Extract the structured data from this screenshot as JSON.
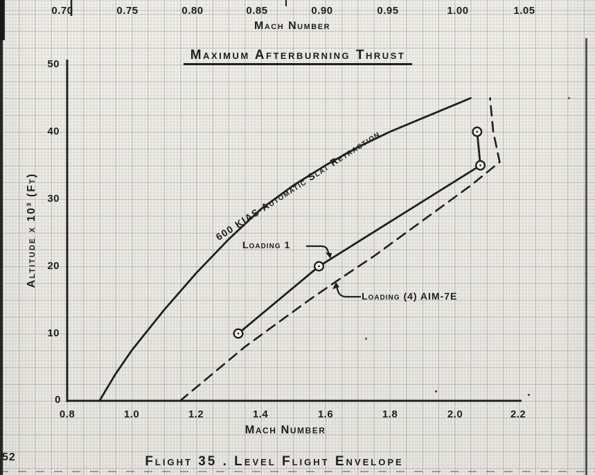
{
  "page": {
    "number": "52",
    "caption": "Flight 35 . Level Flight Envelope"
  },
  "top_axis": {
    "label": "Mach Number",
    "ticks": [
      "0.70",
      "0.75",
      "0.80",
      "0.85",
      "0.90",
      "0.95",
      "1.00",
      "1.05"
    ]
  },
  "chart": {
    "title": "Maximum Afterburning Thrust",
    "y_axis": {
      "label": "Altitude x 10³ (Ft)",
      "ticks": [
        "50",
        "40",
        "30",
        "20",
        "10",
        "0"
      ]
    },
    "x_axis": {
      "label": "Mach Number",
      "ticks": [
        "0.8",
        "1.0",
        "1.2",
        "1.4",
        "1.6",
        "1.8",
        "2.0",
        "2.2"
      ]
    },
    "labels": {
      "envelope": "600 KIAS-Automatic Slat Retraction",
      "loading1": "Loading 1",
      "loading4": "Loading (4) AIM-7E"
    }
  },
  "chart_data": {
    "type": "line",
    "title": "Maximum Afterburning Thrust",
    "xlabel": "Mach Number",
    "ylabel": "Altitude x 10^3 (FT)",
    "xlim": [
      0.8,
      2.2
    ],
    "ylim": [
      0,
      50
    ],
    "x_ticks": [
      0.8,
      1.0,
      1.2,
      1.4,
      1.6,
      1.8,
      2.0,
      2.2
    ],
    "y_ticks": [
      0,
      10,
      20,
      30,
      40,
      50
    ],
    "grid": true,
    "top_axis": {
      "label": "Mach Number",
      "ticks": [
        0.7,
        0.75,
        0.8,
        0.85,
        0.9,
        0.95,
        1.0,
        1.05
      ]
    },
    "caption": "Flight 35 . Level Flight Envelope",
    "series": [
      {
        "name": "600 KIAS-Automatic Slat Retraction",
        "style": "solid",
        "markers": false,
        "points": [
          [
            0.9,
            0
          ],
          [
            0.95,
            4
          ],
          [
            1.0,
            7.5
          ],
          [
            1.05,
            10.5
          ],
          [
            1.1,
            13.5
          ],
          [
            1.2,
            19
          ],
          [
            1.3,
            24
          ],
          [
            1.4,
            28.5
          ],
          [
            1.5,
            32
          ],
          [
            1.6,
            35
          ],
          [
            1.7,
            37.7
          ],
          [
            1.8,
            40
          ],
          [
            1.9,
            42
          ],
          [
            2.0,
            44
          ],
          [
            2.05,
            45
          ]
        ]
      },
      {
        "name": "Loading 1",
        "style": "solid",
        "markers": true,
        "points": [
          [
            1.33,
            10
          ],
          [
            1.58,
            20
          ],
          [
            2.08,
            35
          ],
          [
            2.07,
            40
          ]
        ]
      },
      {
        "name": "Loading (4) AIM-7E",
        "style": "dashed",
        "markers": false,
        "points": [
          [
            1.15,
            0
          ],
          [
            1.25,
            4
          ],
          [
            1.35,
            8
          ],
          [
            1.45,
            11.5
          ],
          [
            1.55,
            15
          ],
          [
            1.65,
            18.3
          ],
          [
            1.75,
            21.5
          ],
          [
            1.85,
            25
          ],
          [
            1.95,
            28.5
          ],
          [
            2.05,
            32
          ],
          [
            2.14,
            35.5
          ],
          [
            2.12,
            40
          ],
          [
            2.11,
            45
          ]
        ]
      }
    ]
  },
  "colors": {
    "ink": "#1f1f1f",
    "paper": "#f4f2ec"
  }
}
